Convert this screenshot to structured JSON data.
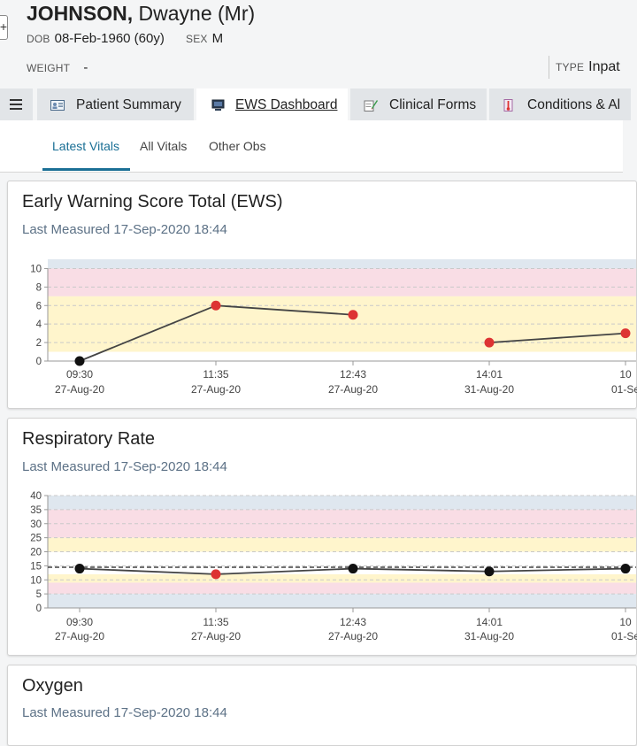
{
  "patient": {
    "surname": "JOHNSON,",
    "given": "Dwayne (Mr)",
    "dob_label": "DOB",
    "dob_value": "08-Feb-1960 (60y)",
    "sex_label": "SEX",
    "sex_value": "M",
    "weight_label": "WEIGHT",
    "weight_value": "-",
    "type_label": "TYPE",
    "type_value": "Inpat"
  },
  "tabs": [
    {
      "label": "Patient Summary",
      "icon": "patient-card-icon"
    },
    {
      "label": "EWS Dashboard",
      "icon": "monitor-icon"
    },
    {
      "label": "Clinical Forms",
      "icon": "form-pencil-icon"
    },
    {
      "label": "Conditions & Al",
      "icon": "thermometer-icon"
    }
  ],
  "subtabs": [
    "Latest Vitals",
    "All Vitals",
    "Other Obs"
  ],
  "colors": {
    "accent": "#1a6f95",
    "band_blue": "#dfe7ef",
    "band_pink": "#f9dde5",
    "band_yellow": "#fff5cc",
    "point_red": "#dd3333",
    "point_black": "#111111"
  },
  "cards": [
    {
      "title": "Early Warning Score Total (EWS)",
      "subtitle": "Last Measured 17-Sep-2020 18:44"
    },
    {
      "title": "Respiratory Rate",
      "subtitle": "Last Measured 17-Sep-2020 18:44"
    },
    {
      "title": "Oxygen",
      "subtitle": "Last Measured 17-Sep-2020 18:44"
    }
  ],
  "chart_data": [
    {
      "type": "line",
      "title": "Early Warning Score Total (EWS)",
      "x": [
        {
          "time": "09:30",
          "date": "27-Aug-20"
        },
        {
          "time": "11:35",
          "date": "27-Aug-20"
        },
        {
          "time": "12:43",
          "date": "27-Aug-20"
        },
        {
          "time": "14:01",
          "date": "31-Aug-20"
        },
        {
          "time": "10",
          "date": "01-Se"
        }
      ],
      "yticks": [
        0,
        2,
        4,
        6,
        8,
        10
      ],
      "ylim": [
        0,
        11
      ],
      "points": [
        {
          "value": 0,
          "color": "black"
        },
        {
          "value": 6,
          "color": "red"
        },
        {
          "value": 5,
          "color": "red"
        },
        {
          "value": 2,
          "color": "red"
        },
        {
          "value": 3,
          "color": "red"
        }
      ],
      "segments": [
        [
          0,
          1
        ],
        [
          1,
          2
        ],
        [
          3,
          4
        ]
      ],
      "bands": [
        {
          "from": 10,
          "to": 11,
          "color": "blue"
        },
        {
          "from": 7,
          "to": 10,
          "color": "pink"
        },
        {
          "from": 1,
          "to": 7,
          "color": "yellow"
        }
      ],
      "grid": true
    },
    {
      "type": "line",
      "title": "Respiratory Rate",
      "x": [
        {
          "time": "09:30",
          "date": "27-Aug-20"
        },
        {
          "time": "11:35",
          "date": "27-Aug-20"
        },
        {
          "time": "12:43",
          "date": "27-Aug-20"
        },
        {
          "time": "14:01",
          "date": "31-Aug-20"
        },
        {
          "time": "10",
          "date": "01-Se"
        }
      ],
      "yticks": [
        0,
        5,
        10,
        15,
        20,
        25,
        30,
        35,
        40
      ],
      "ylim": [
        0,
        40
      ],
      "points": [
        {
          "value": 14,
          "color": "black"
        },
        {
          "value": 12,
          "color": "red"
        },
        {
          "value": 14,
          "color": "black"
        },
        {
          "value": 13,
          "color": "black"
        },
        {
          "value": 14,
          "color": "black"
        }
      ],
      "segments": [
        [
          0,
          1
        ],
        [
          1,
          2
        ],
        [
          2,
          3
        ],
        [
          3,
          4
        ]
      ],
      "reference_line": 14.5,
      "bands": [
        {
          "from": 35,
          "to": 40,
          "color": "blue"
        },
        {
          "from": 25,
          "to": 35,
          "color": "pink"
        },
        {
          "from": 20,
          "to": 25,
          "color": "yellow"
        },
        {
          "from": 12,
          "to": 20,
          "color": "white"
        },
        {
          "from": 9,
          "to": 12,
          "color": "yellow"
        },
        {
          "from": 5,
          "to": 9,
          "color": "pink"
        },
        {
          "from": 0,
          "to": 5,
          "color": "blue"
        }
      ],
      "grid": true
    }
  ]
}
